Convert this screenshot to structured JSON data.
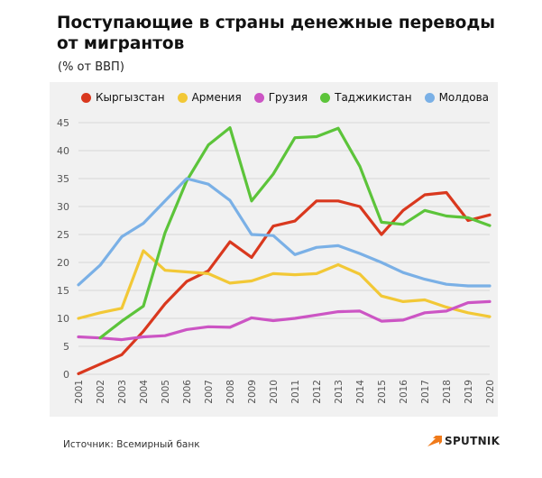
{
  "title": "Поступающие в страны денежные переводы от мигрантов",
  "subtitle": "(% от ВВП)",
  "source": "Источник: Всемирный банк",
  "brand": "SPUTNIK",
  "brand_icon": "sputnik-arrow-icon",
  "chart_data": {
    "type": "line",
    "title": "",
    "xlabel": "",
    "ylabel": "",
    "x": [
      "2001",
      "2002",
      "2003",
      "2004",
      "2005",
      "2006",
      "2007",
      "2008",
      "2009",
      "2010",
      "2011",
      "2012",
      "2013",
      "2014",
      "2015",
      "2016",
      "2017",
      "2018",
      "2019",
      "2020"
    ],
    "ylim": [
      0,
      45
    ],
    "yticks": [
      0,
      5,
      10,
      15,
      20,
      25,
      30,
      35,
      40,
      45
    ],
    "grid": true,
    "legend": "top",
    "series": [
      {
        "name": "Кыргызстан",
        "color": "#d9381e",
        "values": [
          0.1,
          1.8,
          3.5,
          7.7,
          12.6,
          16.6,
          18.5,
          23.7,
          20.9,
          26.5,
          27.4,
          31.0,
          31.0,
          30.0,
          25.0,
          29.3,
          32.1,
          32.5,
          27.5,
          28.5
        ]
      },
      {
        "name": "Армения",
        "color": "#f2c836",
        "values": [
          10.0,
          11.0,
          11.8,
          22.1,
          18.6,
          18.3,
          18.0,
          16.3,
          16.7,
          18.0,
          17.8,
          18.0,
          19.6,
          17.9,
          14.0,
          13.0,
          13.3,
          12.0,
          11.0,
          10.3
        ]
      },
      {
        "name": "Грузия",
        "color": "#cc55c4",
        "values": [
          6.7,
          6.5,
          6.2,
          6.7,
          6.9,
          8.0,
          8.5,
          8.4,
          10.1,
          9.6,
          10.0,
          10.6,
          11.2,
          11.3,
          9.5,
          9.7,
          11.0,
          11.3,
          12.8,
          13.0
        ]
      },
      {
        "name": "Таджикистан",
        "color": "#5cc43a",
        "values": [
          null,
          6.5,
          9.5,
          12.2,
          25.3,
          34.6,
          41.0,
          44.1,
          31.0,
          35.8,
          42.3,
          42.5,
          44.0,
          37.2,
          27.2,
          26.8,
          29.3,
          28.3,
          28.0,
          26.6
        ]
      },
      {
        "name": "Молдова",
        "color": "#7ab0e6",
        "values": [
          16.0,
          19.5,
          24.6,
          27.0,
          31.0,
          35.0,
          34.0,
          31.1,
          25.0,
          24.8,
          21.4,
          22.7,
          23.0,
          21.6,
          20.0,
          18.2,
          17.0,
          16.1,
          15.8,
          15.8
        ]
      }
    ]
  }
}
